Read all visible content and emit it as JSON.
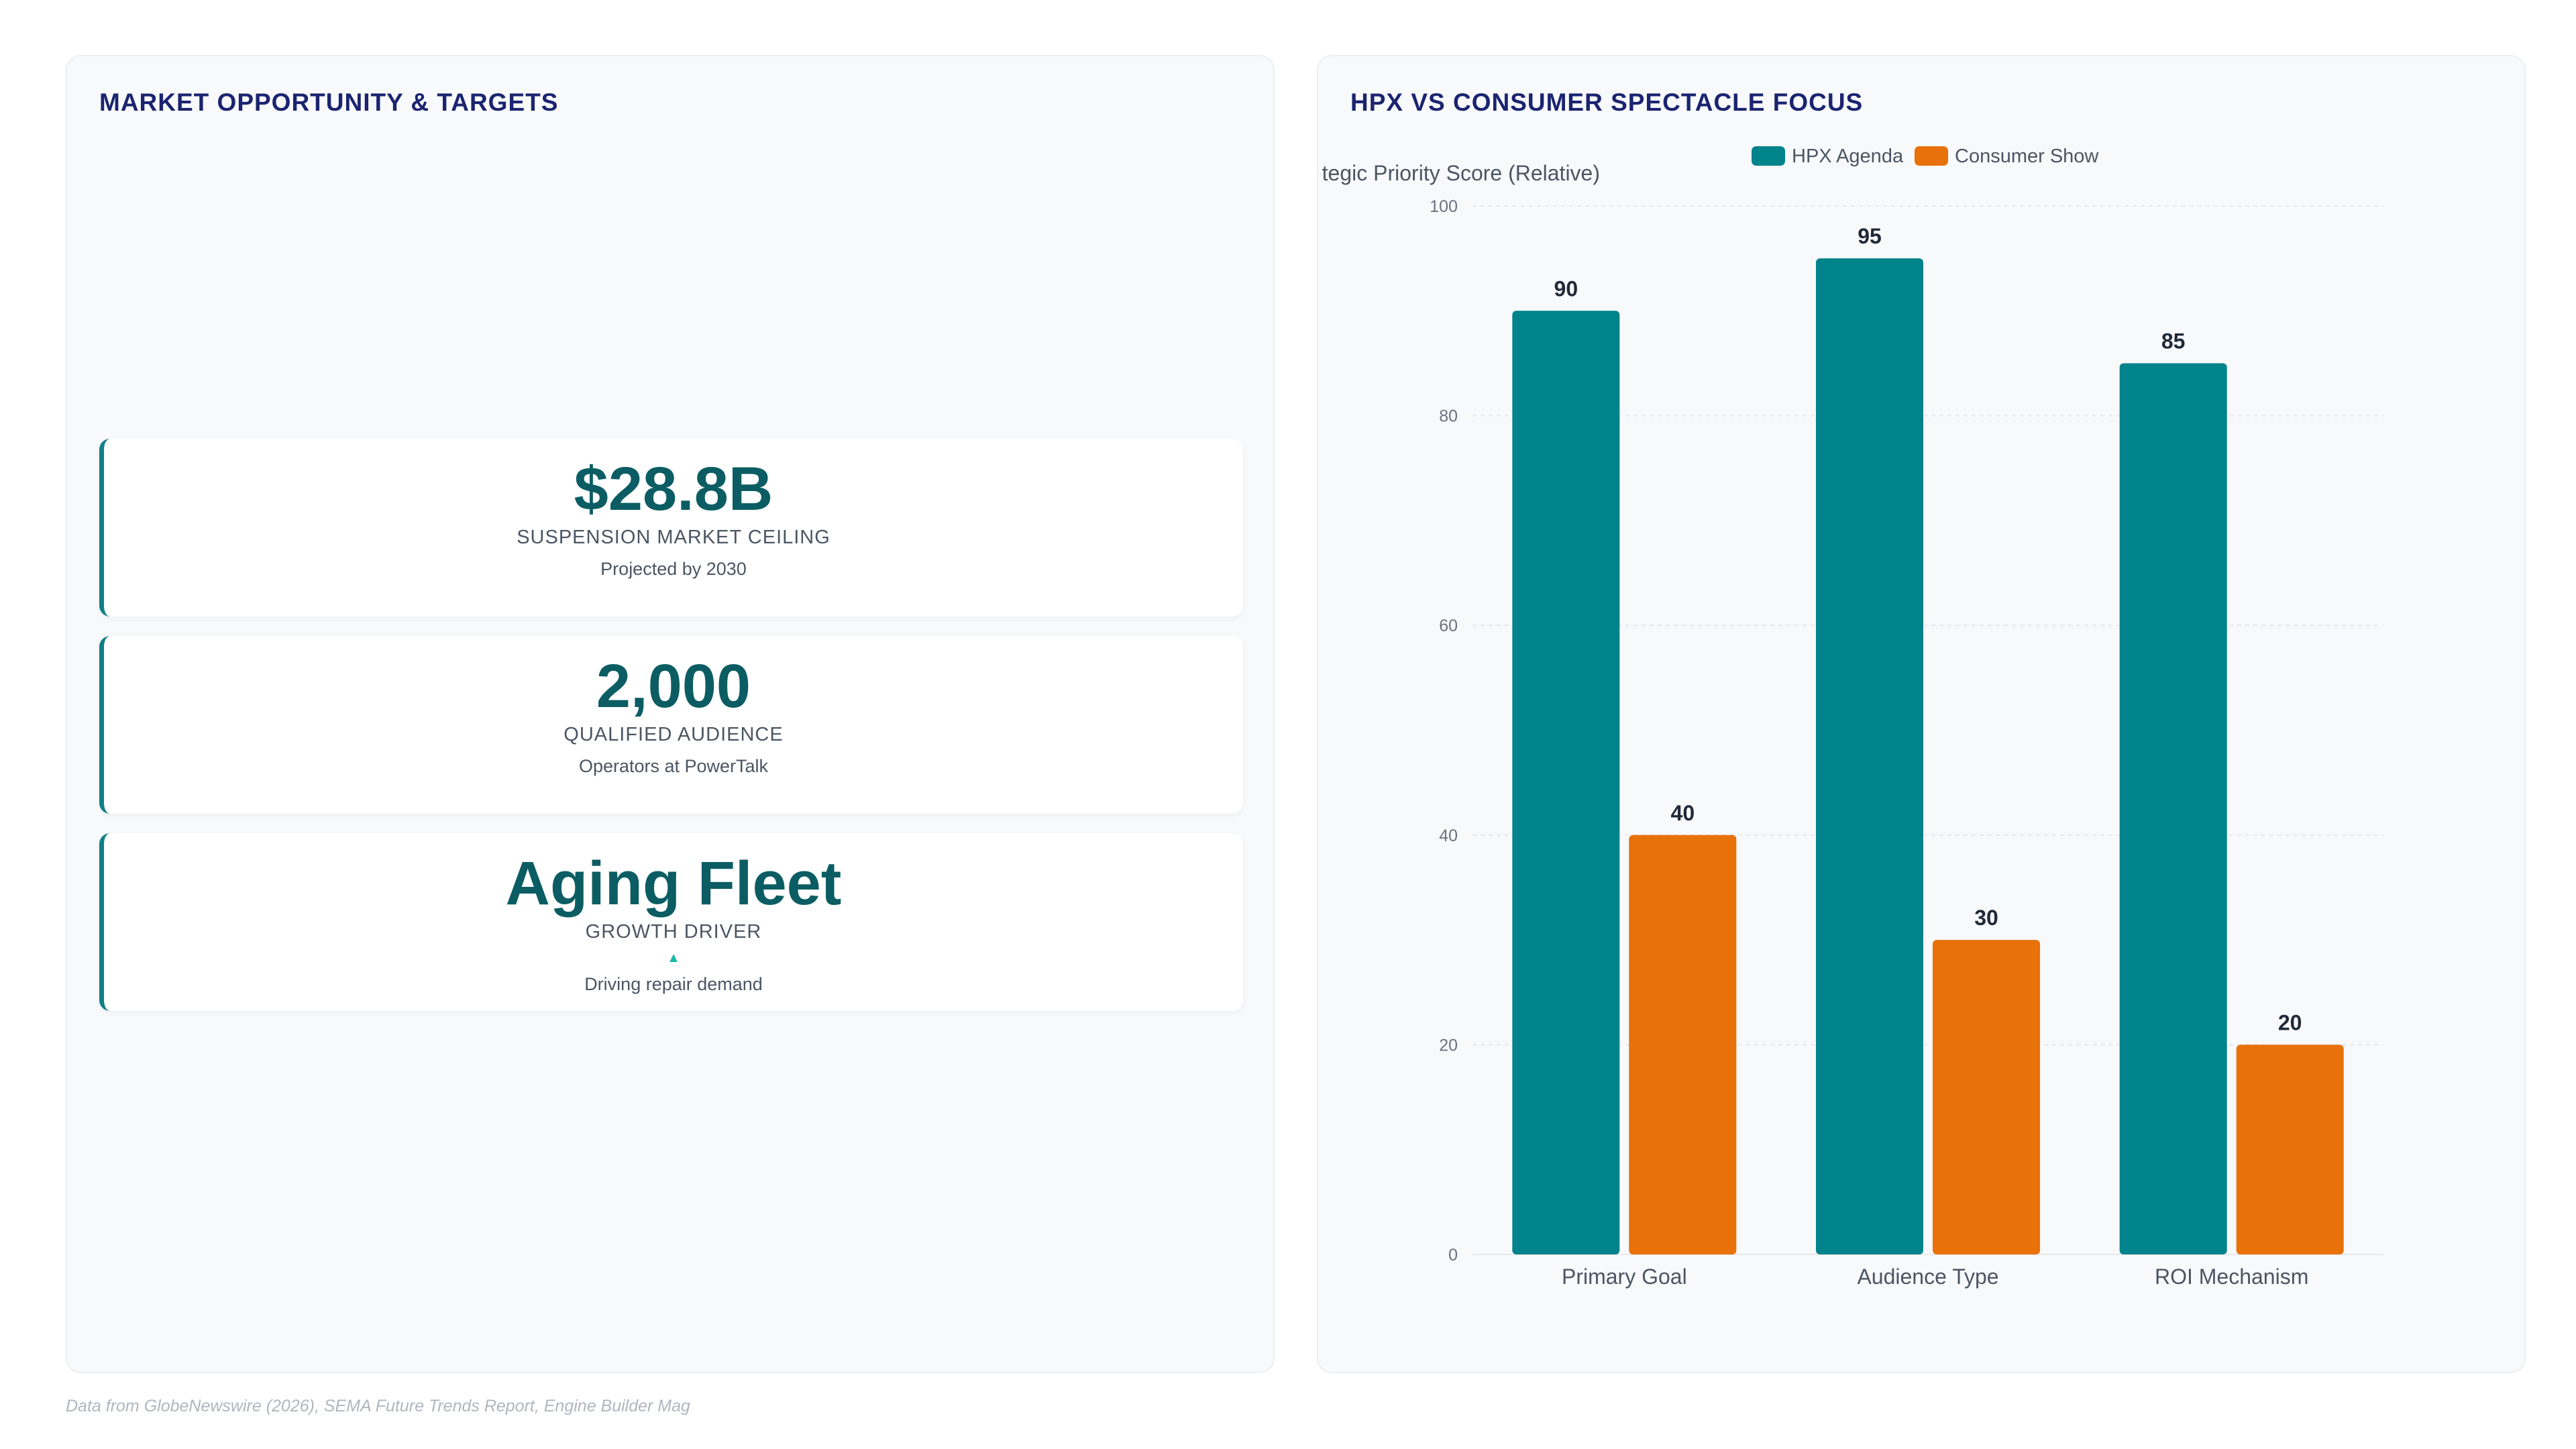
{
  "left_panel": {
    "title": "MARKET OPPORTUNITY & TARGETS",
    "cards": [
      {
        "value": "$28.8B",
        "label": "SUSPENSION MARKET CEILING",
        "sub": "Projected by 2030"
      },
      {
        "value": "2,000",
        "label": "QUALIFIED AUDIENCE",
        "sub": "Operators at PowerTalk"
      },
      {
        "value": "Aging Fleet",
        "label": "GROWTH DRIVER",
        "arrow": "▲",
        "sub": "Driving repair demand"
      }
    ]
  },
  "right_panel": {
    "title": "HPX VS CONSUMER SPECTACLE FOCUS"
  },
  "chart_data": {
    "type": "bar",
    "title": "",
    "categories": [
      "Primary Goal",
      "Audience Type",
      "ROI Mechanism"
    ],
    "series": [
      {
        "name": "HPX Agenda",
        "color": "#00838a",
        "values": [
          90,
          95,
          85
        ]
      },
      {
        "name": "Consumer Show",
        "color": "#e8710a",
        "values": [
          40,
          30,
          20
        ]
      }
    ],
    "ylabel": "tegic Priority Score (Relative)",
    "ylim": [
      0,
      100
    ],
    "yticks": [
      0,
      20,
      40,
      60,
      80,
      100
    ],
    "data_labels": true,
    "grid": true,
    "legend_position": "top"
  },
  "footnote": "Data from GlobeNewswire (2026), SEMA Future Trends Report, Engine Builder Mag"
}
